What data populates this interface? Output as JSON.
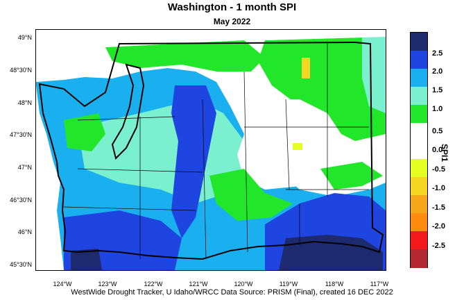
{
  "header": {
    "title": "Washington - 1 month SPI",
    "subtitle": "May 2022"
  },
  "map": {
    "latitude_labels": [
      "49°N",
      "48°30'N",
      "48°N",
      "47°30'N",
      "47°N",
      "46°30'N",
      "46°N",
      "45°30'N"
    ],
    "longitude_labels": [
      "124°W",
      "123°W",
      "122°W",
      "121°W",
      "120°W",
      "119°W",
      "118°W",
      "117°W"
    ],
    "colors": {
      "extreme_wet": "#1e2a6e",
      "very_wet": "#1f45e0",
      "wet": "#1ab0f0",
      "moderately_wet": "#7af0cf",
      "slightly_wet": "#22e62a",
      "normal": "#ffffff",
      "slightly_dry": "#e6ff22",
      "moderately_dry": "#f5d623",
      "dry": "#f5a61a",
      "very_dry": "#ff8a10",
      "extreme_dry_red": "#f21a1a",
      "extreme_dry": "#b3282e"
    }
  },
  "legend": {
    "title": "SPI1",
    "labels": [
      "2.5",
      "2.0",
      "1.5",
      "1.0",
      "0.5",
      "0.0",
      "-0.5",
      "-1.0",
      "-1.5",
      "-2.0",
      "-2.5"
    ],
    "colors": [
      "#1e2a6e",
      "#1f45e0",
      "#1ab0f0",
      "#7af0cf",
      "#22e62a",
      "#ffffff",
      "#ffffff",
      "#e6ff22",
      "#f5d623",
      "#f5a61a",
      "#ff8a10",
      "#f21a1a",
      "#b3282e"
    ]
  },
  "footer": {
    "text": "WestWide Drought Tracker, U Idaho/WRCC Data Source: PRISM (Final), created 16 DEC 2022"
  }
}
